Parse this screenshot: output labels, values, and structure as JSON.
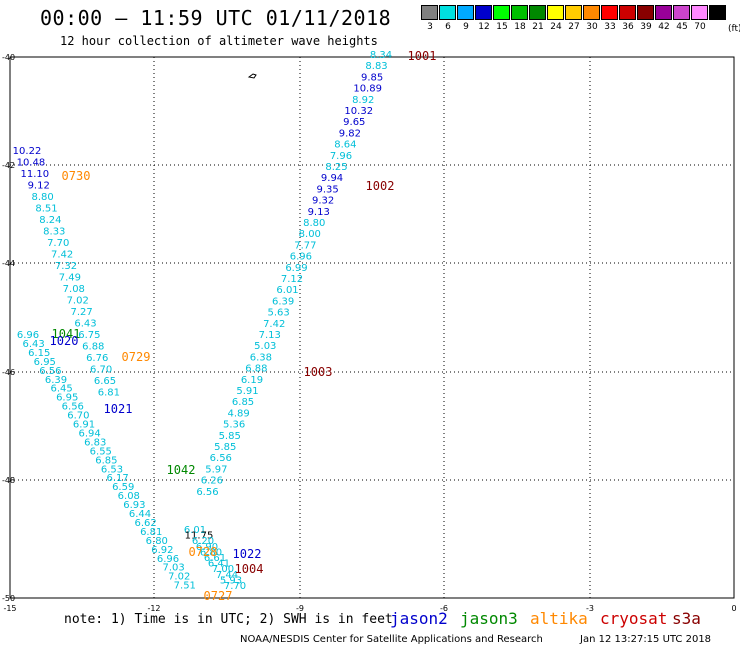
{
  "header": {
    "title": "00:00 — 11:59 UTC 01/11/2018",
    "subtitle": "12 hour collection of altimeter wave heights"
  },
  "legend": {
    "unit": "(ft)",
    "items": [
      {
        "label": "3",
        "color": "#808080"
      },
      {
        "label": "6",
        "color": "#00e0e0"
      },
      {
        "label": "9",
        "color": "#00aaff"
      },
      {
        "label": "12",
        "color": "#0000cc"
      },
      {
        "label": "15",
        "color": "#00ff00"
      },
      {
        "label": "18",
        "color": "#00c000"
      },
      {
        "label": "21",
        "color": "#008800"
      },
      {
        "label": "24",
        "color": "#ffff00"
      },
      {
        "label": "27",
        "color": "#ffcc00"
      },
      {
        "label": "30",
        "color": "#ff8800"
      },
      {
        "label": "33",
        "color": "#ff0000"
      },
      {
        "label": "36",
        "color": "#cc0000"
      },
      {
        "label": "39",
        "color": "#880000"
      },
      {
        "label": "42",
        "color": "#990099"
      },
      {
        "label": "45",
        "color": "#cc44cc"
      },
      {
        "label": "70",
        "color": "#ff88ff"
      },
      {
        "label": "",
        "color": "#000000"
      }
    ]
  },
  "map": {
    "lat_labels": [
      "-40",
      "-42",
      "-44",
      "-46",
      "-48",
      "-50"
    ],
    "lon_labels": [
      "-15",
      "-12",
      "-9",
      "-6",
      "-3",
      "0"
    ],
    "grid": true
  },
  "tracks": {
    "descending": [
      {
        "v": "8.34",
        "c": "#00bfd8"
      },
      {
        "v": "8.83",
        "c": "#00bfd8"
      },
      {
        "v": "9.85",
        "c": "#0000cc"
      },
      {
        "v": "10.89",
        "c": "#0000cc"
      },
      {
        "v": "8.92",
        "c": "#00bfd8"
      },
      {
        "v": "10.32",
        "c": "#0000cc"
      },
      {
        "v": "9.65",
        "c": "#0000cc"
      },
      {
        "v": "9.82",
        "c": "#0000cc"
      },
      {
        "v": "8.64",
        "c": "#00bfd8"
      },
      {
        "v": "7.96",
        "c": "#00bfd8"
      },
      {
        "v": "8.25",
        "c": "#00bfd8"
      },
      {
        "v": "9.94",
        "c": "#0000cc"
      },
      {
        "v": "9.35",
        "c": "#0000cc"
      },
      {
        "v": "9.32",
        "c": "#0000cc"
      },
      {
        "v": "9.13",
        "c": "#0000cc"
      },
      {
        "v": "8.80",
        "c": "#00bfd8"
      },
      {
        "v": "8.00",
        "c": "#00bfd8"
      },
      {
        "v": "7.77",
        "c": "#00bfd8"
      },
      {
        "v": "6.96",
        "c": "#00bfd8"
      },
      {
        "v": "6.99",
        "c": "#00bfd8"
      },
      {
        "v": "7.12",
        "c": "#00bfd8"
      },
      {
        "v": "6.01",
        "c": "#00bfd8"
      },
      {
        "v": "6.39",
        "c": "#00bfd8"
      },
      {
        "v": "5.63",
        "c": "#00bfd8"
      },
      {
        "v": "7.42",
        "c": "#00bfd8"
      },
      {
        "v": "7.13",
        "c": "#00bfd8"
      },
      {
        "v": "5.03",
        "c": "#00bfd8"
      },
      {
        "v": "6.38",
        "c": "#00bfd8"
      },
      {
        "v": "6.88",
        "c": "#00bfd8"
      },
      {
        "v": "6.19",
        "c": "#00bfd8"
      },
      {
        "v": "5.91",
        "c": "#00bfd8"
      },
      {
        "v": "6.85",
        "c": "#00bfd8"
      },
      {
        "v": "4.89",
        "c": "#00bfd8"
      },
      {
        "v": "5.36",
        "c": "#00bfd8"
      },
      {
        "v": "5.85",
        "c": "#00bfd8"
      },
      {
        "v": "5.85",
        "c": "#00bfd8"
      },
      {
        "v": "6.56",
        "c": "#00bfd8"
      },
      {
        "v": "5.97",
        "c": "#00bfd8"
      },
      {
        "v": "6.26",
        "c": "#00bfd8"
      },
      {
        "v": "6.56",
        "c": "#00bfd8"
      }
    ],
    "ascending": [
      {
        "v": "10.22",
        "c": "#0000cc"
      },
      {
        "v": "10.48",
        "c": "#0000cc"
      },
      {
        "v": "11.10",
        "c": "#0000cc"
      },
      {
        "v": "9.12",
        "c": "#0000cc"
      },
      {
        "v": "8.80",
        "c": "#00bfd8"
      },
      {
        "v": "8.51",
        "c": "#00bfd8"
      },
      {
        "v": "8.24",
        "c": "#00bfd8"
      },
      {
        "v": "8.33",
        "c": "#00bfd8"
      },
      {
        "v": "7.70",
        "c": "#00bfd8"
      },
      {
        "v": "7.42",
        "c": "#00bfd8"
      },
      {
        "v": "7.32",
        "c": "#00bfd8"
      },
      {
        "v": "7.49",
        "c": "#00bfd8"
      },
      {
        "v": "7.08",
        "c": "#00bfd8"
      },
      {
        "v": "7.02",
        "c": "#00bfd8"
      },
      {
        "v": "7.27",
        "c": "#00bfd8"
      },
      {
        "v": "6.43",
        "c": "#00bfd8"
      },
      {
        "v": "6.75",
        "c": "#00bfd8"
      },
      {
        "v": "6.88",
        "c": "#00bfd8"
      },
      {
        "v": "6.76",
        "c": "#00bfd8"
      },
      {
        "v": "6.70",
        "c": "#00bfd8"
      },
      {
        "v": "6.65",
        "c": "#00bfd8"
      },
      {
        "v": "6.81",
        "c": "#00bfd8"
      }
    ],
    "parallel": [
      {
        "v": "6.96",
        "c": "#00bfd8"
      },
      {
        "v": "6.43",
        "c": "#00bfd8"
      },
      {
        "v": "6.15",
        "c": "#00bfd8"
      },
      {
        "v": "6.95",
        "c": "#00bfd8"
      },
      {
        "v": "6.56",
        "c": "#00bfd8"
      },
      {
        "v": "6.39",
        "c": "#00bfd8"
      },
      {
        "v": "6.45",
        "c": "#00bfd8"
      },
      {
        "v": "6.95",
        "c": "#00bfd8"
      },
      {
        "v": "6.56",
        "c": "#00bfd8"
      },
      {
        "v": "6.70",
        "c": "#00bfd8"
      },
      {
        "v": "6.91",
        "c": "#00bfd8"
      },
      {
        "v": "6.94",
        "c": "#00bfd8"
      },
      {
        "v": "6.83",
        "c": "#00bfd8"
      },
      {
        "v": "6.55",
        "c": "#00bfd8"
      },
      {
        "v": "6.85",
        "c": "#00bfd8"
      },
      {
        "v": "6.53",
        "c": "#00bfd8"
      },
      {
        "v": "6.17",
        "c": "#00bfd8"
      },
      {
        "v": "6.59",
        "c": "#00bfd8"
      },
      {
        "v": "6.08",
        "c": "#00bfd8"
      },
      {
        "v": "6.93",
        "c": "#00bfd8"
      },
      {
        "v": "6.44",
        "c": "#00bfd8"
      },
      {
        "v": "6.62",
        "c": "#00bfd8"
      },
      {
        "v": "6.81",
        "c": "#00bfd8"
      },
      {
        "v": "6.80",
        "c": "#00bfd8"
      },
      {
        "v": "6.92",
        "c": "#00bfd8"
      },
      {
        "v": "6.96",
        "c": "#00bfd8"
      },
      {
        "v": "7.03",
        "c": "#00bfd8"
      },
      {
        "v": "7.02",
        "c": "#00bfd8"
      },
      {
        "v": "7.51",
        "c": "#00bfd8"
      }
    ],
    "tail": [
      {
        "v": "6.01",
        "c": "#00bfd8"
      },
      {
        "v": "11.75",
        "c": "#000000"
      },
      {
        "v": "6.20",
        "c": "#00bfd8"
      },
      {
        "v": "6.90",
        "c": "#00bfd8"
      },
      {
        "v": "6.80",
        "c": "#00bfd8"
      },
      {
        "v": "6.61",
        "c": "#00bfd8"
      },
      {
        "v": "6.41",
        "c": "#00bfd8"
      },
      {
        "v": "7.00",
        "c": "#00bfd8"
      },
      {
        "v": "7.44",
        "c": "#00bfd8"
      },
      {
        "v": "5.93",
        "c": "#00bfd8"
      },
      {
        "v": "7.70",
        "c": "#00bfd8"
      }
    ]
  },
  "pass_labels": [
    {
      "text": "1001",
      "sat": "s3a"
    },
    {
      "text": "1002",
      "sat": "s3a"
    },
    {
      "text": "1003",
      "sat": "s3a"
    },
    {
      "text": "1004",
      "sat": "s3a"
    },
    {
      "text": "0730",
      "sat": "altika"
    },
    {
      "text": "0729",
      "sat": "altika"
    },
    {
      "text": "0728",
      "sat": "altika"
    },
    {
      "text": "0727",
      "sat": "altika"
    },
    {
      "text": "1041",
      "sat": "jason3"
    },
    {
      "text": "1042",
      "sat": "jason3"
    },
    {
      "text": "1020",
      "sat": "jason2"
    },
    {
      "text": "1021",
      "sat": "jason2"
    },
    {
      "text": "1022",
      "sat": "jason2"
    }
  ],
  "sat_colors": {
    "jason2": "#0000cc",
    "jason3": "#008800",
    "altika": "#ff8800",
    "cryosat": "#cc0000",
    "s3a": "#880000"
  },
  "footer": {
    "note": "note: 1) Time is in UTC; 2) SWH is in feet",
    "sat_names": {
      "jason2": "jason2",
      "jason3": "jason3",
      "altika": "altika",
      "cryosat": "cryosat",
      "s3a": "s3a"
    },
    "credit": "NOAA/NESDIS Center for Satellite Applications and Research",
    "stamp": "Jan 12 13:27:15 UTC 2018"
  }
}
